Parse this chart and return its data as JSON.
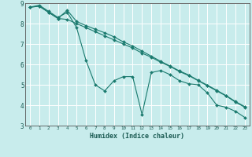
{
  "background_color": "#c8ecec",
  "grid_color": "#ffffff",
  "line_color": "#1a7a6e",
  "xlabel": "Humidex (Indice chaleur)",
  "xlim": [
    -0.5,
    23.5
  ],
  "ylim": [
    3,
    9
  ],
  "yticks": [
    3,
    4,
    5,
    6,
    7,
    8,
    9
  ],
  "xticks": [
    0,
    1,
    2,
    3,
    4,
    5,
    6,
    7,
    8,
    9,
    10,
    11,
    12,
    13,
    14,
    15,
    16,
    17,
    18,
    19,
    20,
    21,
    22,
    23
  ],
  "series1_x": [
    0,
    1,
    2,
    3,
    4,
    5,
    6,
    7,
    8,
    9,
    10,
    11,
    12,
    13,
    14,
    15,
    16,
    17,
    18,
    19,
    20,
    21,
    22,
    23
  ],
  "series1_y": [
    8.8,
    8.9,
    8.6,
    8.3,
    8.55,
    7.8,
    6.2,
    5.0,
    4.7,
    5.2,
    5.4,
    5.4,
    3.55,
    5.6,
    5.7,
    5.5,
    5.2,
    5.05,
    5.0,
    4.6,
    4.0,
    3.9,
    3.7,
    3.4
  ],
  "series2_x": [
    0,
    1,
    2,
    3,
    4,
    5,
    6,
    7,
    8,
    9,
    10,
    11,
    12,
    13,
    14,
    15,
    16,
    17,
    18,
    19,
    20,
    21,
    22,
    23
  ],
  "series2_y": [
    8.8,
    8.85,
    8.55,
    8.25,
    8.2,
    8.0,
    7.8,
    7.6,
    7.4,
    7.2,
    7.0,
    6.8,
    6.55,
    6.35,
    6.1,
    5.9,
    5.65,
    5.45,
    5.2,
    4.95,
    4.7,
    4.45,
    4.15,
    3.9
  ],
  "series3_x": [
    0,
    1,
    2,
    3,
    4,
    5,
    6,
    7,
    8,
    9,
    10,
    11,
    12,
    13,
    14,
    15,
    16,
    17,
    18,
    19,
    20,
    21,
    22,
    23
  ],
  "series3_y": [
    8.8,
    8.85,
    8.55,
    8.25,
    8.65,
    8.1,
    7.9,
    7.72,
    7.55,
    7.35,
    7.1,
    6.9,
    6.65,
    6.4,
    6.15,
    5.92,
    5.68,
    5.48,
    5.22,
    4.98,
    4.73,
    4.47,
    4.18,
    3.93
  ]
}
